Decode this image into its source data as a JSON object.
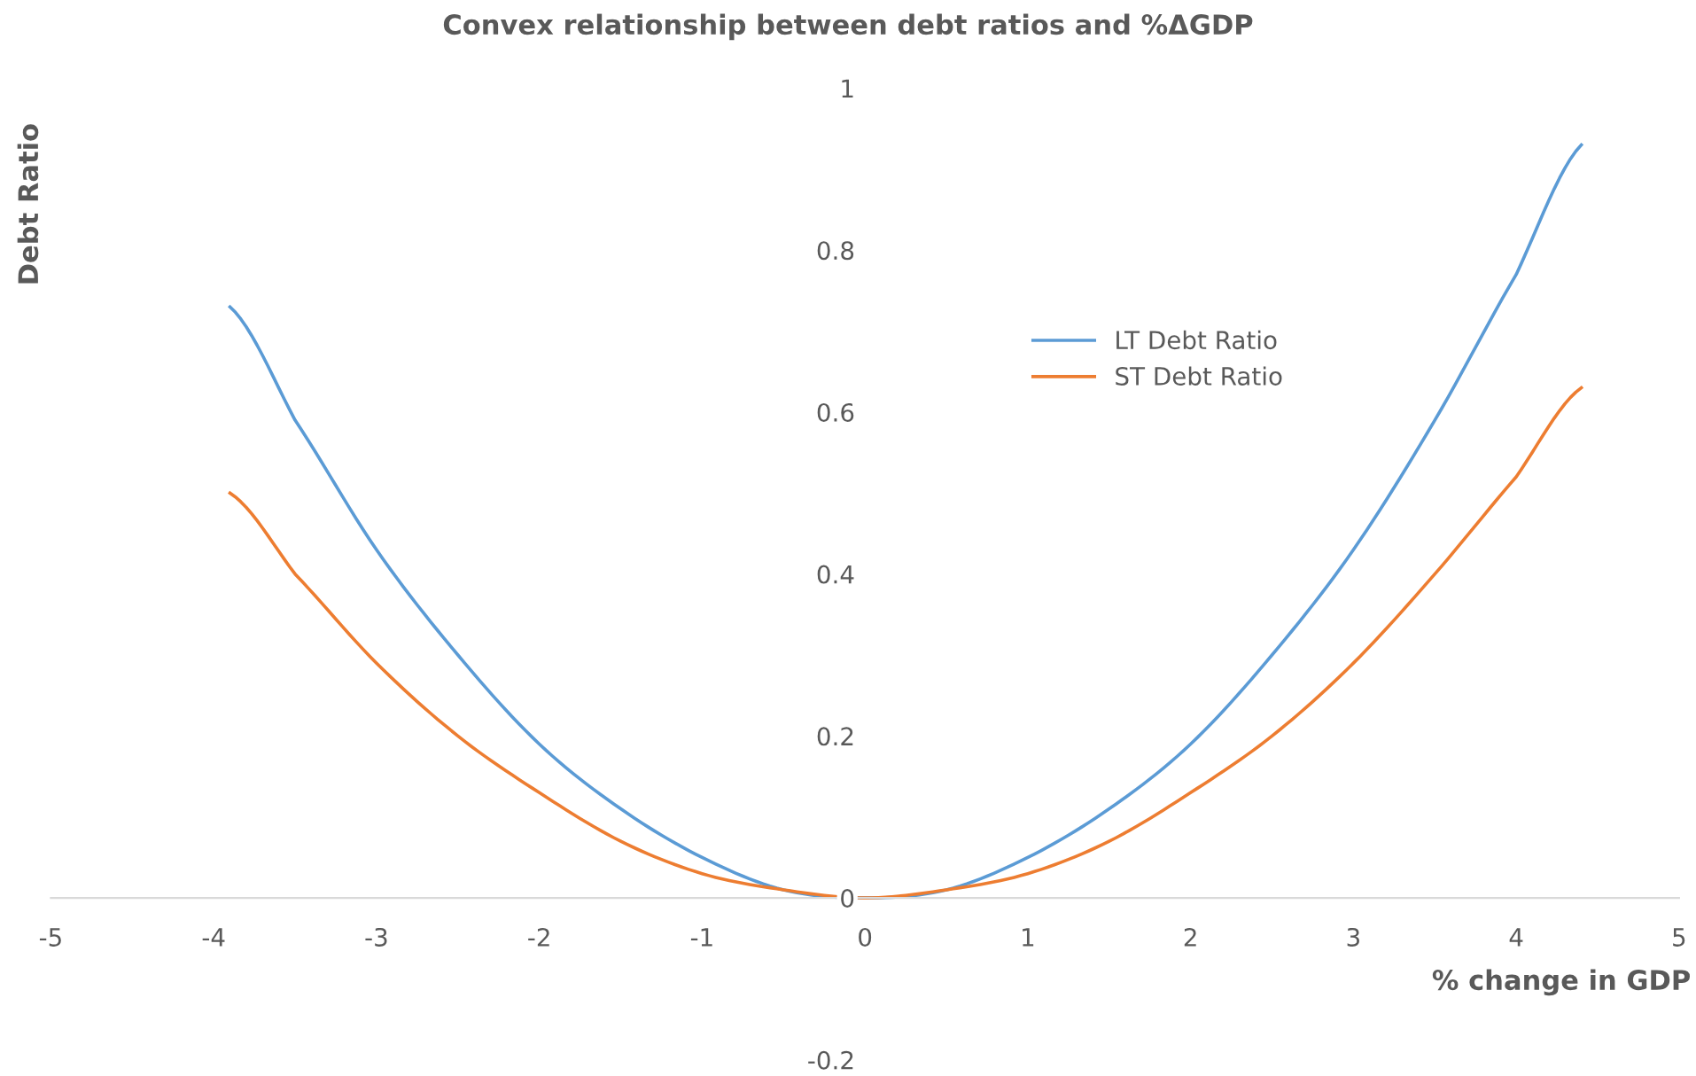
{
  "chart_data": {
    "type": "line",
    "title": "Convex relationship between debt ratios and %ΔGDP",
    "xlabel": "% change in GDP",
    "ylabel": "Debt Ratio",
    "x": [
      -3.9,
      -3.5,
      -3,
      -2.5,
      -2,
      -1.5,
      -1,
      -0.5,
      0,
      0.5,
      1,
      1.5,
      2,
      2.5,
      3,
      3.5,
      4,
      4.4
    ],
    "series": [
      {
        "name": "LT Debt Ratio",
        "color": "#5b9bd5",
        "values": [
          0.73,
          0.59,
          0.43,
          0.3,
          0.19,
          0.11,
          0.05,
          0.01,
          0,
          0.01,
          0.05,
          0.11,
          0.19,
          0.3,
          0.43,
          0.59,
          0.77,
          0.93
        ]
      },
      {
        "name": "ST Debt Ratio",
        "color": "#ed7d31",
        "values": [
          0.5,
          0.4,
          0.29,
          0.2,
          0.13,
          0.07,
          0.03,
          0.01,
          0,
          0.01,
          0.03,
          0.07,
          0.13,
          0.2,
          0.29,
          0.4,
          0.52,
          0.63
        ]
      }
    ],
    "xlim": [
      -5,
      5
    ],
    "xticks": [
      -5,
      -4,
      -3,
      -2,
      -1,
      0,
      1,
      2,
      3,
      4,
      5
    ],
    "ylim": [
      -0.2,
      1
    ],
    "yticks": [
      -0.2,
      0,
      0.2,
      0.4,
      0.6,
      0.8,
      1
    ],
    "grid": false,
    "legend": "top",
    "marker": "none",
    "line_style": "solid"
  }
}
